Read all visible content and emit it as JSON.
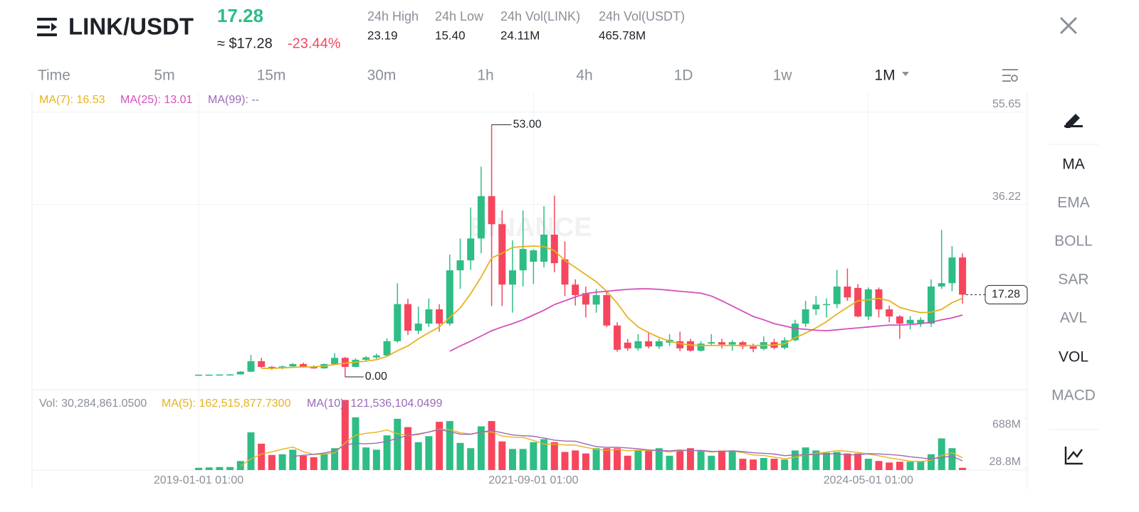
{
  "header": {
    "pair": "LINK/USDT",
    "price": "17.28",
    "usd_price": "≈ $17.28",
    "change": "-23.44%",
    "stats": [
      {
        "label": "24h High",
        "value": "23.19"
      },
      {
        "label": "24h Low",
        "value": "15.40"
      },
      {
        "label": "24h Vol(LINK)",
        "value": "24.11M"
      },
      {
        "label": "24h Vol(USDT)",
        "value": "465.78M"
      }
    ]
  },
  "intervals": [
    {
      "label": "Time",
      "active": false
    },
    {
      "label": "5m",
      "active": false
    },
    {
      "label": "15m",
      "active": false
    },
    {
      "label": "30m",
      "active": false
    },
    {
      "label": "1h",
      "active": false
    },
    {
      "label": "4h",
      "active": false
    },
    {
      "label": "1D",
      "active": false
    },
    {
      "label": "1w",
      "active": false
    },
    {
      "label": "1M",
      "active": true
    }
  ],
  "indicators": [
    {
      "label": "MA",
      "active": true
    },
    {
      "label": "EMA",
      "active": false
    },
    {
      "label": "BOLL",
      "active": false
    },
    {
      "label": "SAR",
      "active": false
    },
    {
      "label": "AVL",
      "active": false
    },
    {
      "label": "VOL",
      "active": true
    },
    {
      "label": "MACD",
      "active": false
    }
  ],
  "chart_data": {
    "type": "candlestick",
    "watermark": "BINANCE",
    "up_color": "#2ebd85",
    "down_color": "#f6465d",
    "ma_series": [
      {
        "name": "MA(7): 16.53",
        "color": "#e8b21e",
        "values": [
          null,
          null,
          null,
          null,
          null,
          null,
          1.8,
          1.8,
          1.9,
          2.0,
          2.1,
          2.1,
          2.3,
          2.6,
          2.9,
          3.1,
          3.3,
          3.6,
          4.3,
          5.5,
          6.5,
          8.0,
          9.3,
          10.5,
          12.5,
          14.5,
          17.5,
          21.0,
          25.0,
          26.0,
          27.2,
          27.4,
          27.5,
          27.4,
          26.5,
          24.5,
          23.0,
          21.5,
          20.0,
          18.0,
          15.5,
          12.5,
          10.5,
          9.3,
          8.3,
          7.5,
          7.0,
          6.7,
          6.6,
          6.6,
          6.6,
          6.6,
          6.6,
          6.6,
          6.6,
          6.7,
          7.0,
          8.2,
          9.2,
          10.3,
          11.6,
          13.2,
          14.6,
          16.0,
          16.2,
          16.5,
          16.0,
          14.6,
          14.0,
          13.5,
          13.6,
          14.2,
          15.6,
          16.53
        ]
      },
      {
        "name": "MA(25): 13.01",
        "color": "#d64fbd",
        "values": [
          null,
          null,
          null,
          null,
          null,
          null,
          null,
          null,
          null,
          null,
          null,
          null,
          null,
          null,
          null,
          null,
          null,
          null,
          null,
          null,
          null,
          null,
          null,
          null,
          5.4,
          6.5,
          7.5,
          8.6,
          9.7,
          10.5,
          11.2,
          12.0,
          13.0,
          14.0,
          15.2,
          16.0,
          16.8,
          17.5,
          17.8,
          18.0,
          18.2,
          18.4,
          18.5,
          18.5,
          18.4,
          18.2,
          18.0,
          17.8,
          17.6,
          17.0,
          16.0,
          14.9,
          13.8,
          12.7,
          12.0,
          11.2,
          10.7,
          10.2,
          10.0,
          9.8,
          9.7,
          9.9,
          10.1,
          10.3,
          10.5,
          10.7,
          10.9,
          10.9,
          11.0,
          11.2,
          11.5,
          12.0,
          12.4,
          13.01
        ]
      },
      {
        "name": "MA(99): --",
        "color": "#9b6ab8",
        "values": []
      }
    ],
    "categories": [
      "2019-01-01 01:00",
      null,
      null,
      null,
      null,
      null,
      null,
      null,
      null,
      null,
      null,
      null,
      null,
      null,
      null,
      null,
      null,
      null,
      null,
      null,
      null,
      null,
      null,
      null,
      null,
      null,
      null,
      null,
      null,
      null,
      null,
      null,
      "2021-09-01 01:00",
      null,
      null,
      null,
      null,
      null,
      null,
      null,
      null,
      null,
      null,
      null,
      null,
      null,
      null,
      null,
      null,
      null,
      null,
      null,
      null,
      null,
      null,
      null,
      null,
      null,
      null,
      null,
      null,
      null,
      null,
      null,
      "2024-05-01 01:00",
      null,
      null,
      null,
      null,
      null,
      null,
      null,
      null,
      null
    ],
    "open": [
      0.45,
      0.46,
      0.47,
      0.5,
      0.52,
      1.1,
      3.3,
      2.1,
      1.8,
      2.2,
      2.7,
      2.1,
      1.8,
      2.7,
      4.0,
      2.1,
      3.6,
      4.1,
      4.5,
      7.5,
      15.3,
      9.7,
      11.2,
      14.2,
      11.2,
      22.4,
      24.5,
      29.1,
      38.0,
      32.1,
      19.4,
      22.4,
      24.2,
      24.2,
      29.9,
      24.7,
      19.4,
      17.6,
      15.2,
      17.2,
      10.8,
      7.2,
      6.0,
      7.5,
      6.4,
      7.2,
      7.5,
      7.5,
      5.5,
      7.0,
      7.3,
      6.8,
      7.3,
      6.4,
      5.9,
      7.3,
      6.1,
      7.7,
      11.2,
      14.2,
      15.2,
      15.3,
      19.0,
      18.7,
      12.7,
      18.4,
      14.2,
      12.7,
      11.2,
      11.2,
      11.2,
      19.0,
      19.7,
      25.1
    ],
    "high": [
      0.5,
      0.5,
      0.55,
      0.6,
      1.2,
      4.6,
      4.0,
      2.3,
      2.4,
      2.9,
      3.0,
      2.4,
      2.8,
      5.0,
      4.2,
      3.9,
      4.4,
      4.9,
      8.1,
      19.7,
      16.4,
      14.8,
      16.5,
      15.3,
      25.7,
      29.1,
      35.6,
      44.2,
      53.0,
      35.0,
      28.7,
      35.0,
      26.8,
      35.9,
      38.1,
      28.5,
      20.5,
      19.0,
      18.5,
      18.0,
      11.5,
      8.0,
      9.0,
      9.5,
      8.0,
      9.0,
      9.5,
      8.0,
      7.5,
      9.0,
      8.0,
      7.7,
      7.6,
      7.0,
      8.5,
      8.0,
      8.3,
      12.0,
      16.0,
      17.0,
      16.5,
      22.5,
      22.8,
      19.5,
      18.8,
      18.8,
      15.0,
      13.0,
      12.8,
      12.5,
      20.5,
      30.9,
      27.5,
      26.0
    ],
    "low": [
      0.4,
      0.42,
      0.44,
      0.45,
      0.5,
      1.0,
      1.9,
      1.5,
      1.6,
      2.0,
      1.9,
      1.7,
      1.7,
      2.6,
      0.0,
      2.0,
      3.3,
      3.8,
      4.4,
      7.2,
      8.8,
      9.0,
      10.5,
      9.5,
      10.8,
      18.5,
      22.5,
      26.0,
      14.9,
      14.9,
      13.5,
      19.0,
      19.5,
      23.0,
      22.0,
      17.0,
      15.0,
      12.5,
      13.5,
      10.5,
      5.3,
      5.5,
      5.5,
      6.0,
      5.9,
      6.5,
      5.4,
      5.3,
      5.3,
      6.5,
      6.0,
      5.5,
      5.8,
      5.2,
      5.6,
      5.8,
      5.8,
      7.5,
      10.5,
      13.0,
      12.5,
      14.5,
      16.0,
      12.5,
      12.0,
      12.5,
      11.5,
      8.0,
      10.0,
      10.5,
      10.5,
      18.5,
      18.0,
      15.4
    ],
    "close": [
      0.46,
      0.47,
      0.5,
      0.52,
      1.1,
      3.3,
      2.1,
      1.8,
      2.2,
      2.7,
      2.1,
      1.8,
      2.7,
      4.0,
      2.1,
      3.6,
      4.1,
      4.5,
      7.5,
      15.3,
      9.7,
      11.2,
      14.2,
      11.2,
      22.4,
      24.5,
      29.1,
      38.0,
      32.1,
      19.4,
      22.4,
      26.9,
      26.6,
      29.9,
      23.9,
      19.4,
      17.2,
      15.2,
      17.2,
      10.8,
      5.7,
      6.0,
      7.5,
      6.4,
      7.5,
      7.8,
      6.0,
      5.5,
      7.0,
      7.3,
      6.8,
      7.3,
      6.4,
      5.9,
      7.3,
      6.1,
      7.7,
      11.2,
      14.2,
      15.2,
      15.3,
      19.0,
      16.7,
      12.7,
      18.4,
      14.2,
      12.7,
      11.2,
      12.0,
      12.0,
      19.0,
      19.7,
      25.1,
      17.28
    ],
    "max_label": "53.00",
    "min_label": "0.00",
    "last_price_label": "17.28",
    "ylim": [
      -2.69,
      59.79
    ],
    "yticks": [
      55.65,
      36.22
    ],
    "volume": {
      "label": "Vol: 30,284,861.0500",
      "values": [
        30,
        35,
        40,
        40,
        120,
        500,
        350,
        200,
        210,
        270,
        190,
        170,
        220,
        290,
        930,
        700,
        300,
        270,
        460,
        680,
        570,
        370,
        450,
        640,
        650,
        360,
        290,
        580,
        650,
        380,
        280,
        280,
        370,
        410,
        370,
        240,
        260,
        220,
        290,
        290,
        290,
        190,
        260,
        260,
        290,
        190,
        260,
        290,
        260,
        190,
        260,
        260,
        150,
        140,
        160,
        150,
        140,
        260,
        300,
        260,
        230,
        240,
        220,
        220,
        150,
        120,
        100,
        110,
        110,
        120,
        210,
        420,
        290,
        30
      ],
      "ma_series": [
        {
          "name": "MA(5): 162,515,877.7300",
          "color": "#e8b21e",
          "values": [
            null,
            null,
            null,
            null,
            53,
            147,
            210,
            242,
            276,
            306,
            244,
            208,
            212,
            228,
            360,
            462,
            488,
            502,
            532,
            482,
            456,
            470,
            506,
            542,
            536,
            494,
            478,
            504,
            506,
            452,
            436,
            434,
            392,
            344,
            342,
            334,
            330,
            300,
            276,
            260,
            272,
            256,
            264,
            258,
            258,
            238,
            260,
            258,
            258,
            238,
            252,
            252,
            232,
            200,
            194,
            172,
            150,
            170,
            202,
            222,
            238,
            258,
            250,
            234,
            212,
            190,
            162,
            140,
            118,
            112,
            130,
            194,
            230,
            163
          ]
        },
        {
          "name": "MA(10): 121,536,104.0499",
          "color": "#9b6ab8",
          "values": [
            null,
            null,
            null,
            null,
            null,
            null,
            null,
            null,
            null,
            180,
            196,
            209,
            227,
            252,
            333,
            353,
            348,
            357,
            380,
            421,
            459,
            479,
            504,
            537,
            509,
            475,
            474,
            505,
            524,
            494,
            465,
            456,
            448,
            425,
            397,
            385,
            382,
            346,
            310,
            301,
            303,
            293,
            282,
            267,
            259,
            255,
            266,
            257,
            261,
            248,
            245,
            255,
            245,
            229,
            223,
            212,
            191,
            201,
            201,
            208,
            216,
            214,
            200,
            202,
            217,
            214,
            206,
            195,
            176,
            162,
            146,
            167,
            185,
            122
          ]
        }
      ],
      "ylim": [
        0,
        1000
      ],
      "yticks": [
        {
          "value": 688,
          "label": "688M"
        },
        {
          "value": 28.8,
          "label": "28.8M"
        }
      ]
    }
  }
}
